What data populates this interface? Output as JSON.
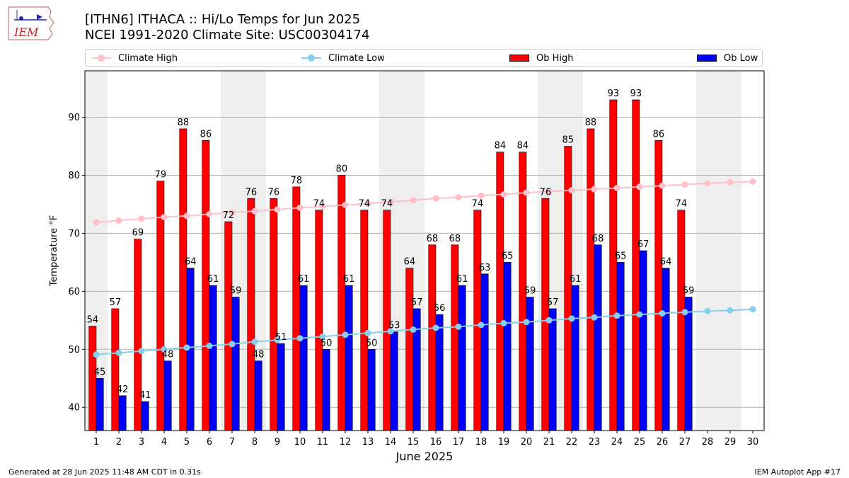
{
  "logo": {
    "text": "IEM"
  },
  "header": {
    "title_line1": "[ITHN6] ITHACA :: Hi/Lo Temps for Jun 2025",
    "title_line2": "NCEI 1991-2020 Climate Site: USC00304174"
  },
  "legend": {
    "climate_high": "Climate High",
    "climate_low": "Climate Low",
    "ob_high": "Ob High",
    "ob_low": "Ob Low"
  },
  "footer": {
    "left": "Generated at 28 Jun 2025 11:48 AM CDT in 0.31s",
    "right": "IEM Autoplot App #17"
  },
  "colors": {
    "ob_high": "#ff0000",
    "ob_low": "#0000ff",
    "climate_high": "#ffc0cb",
    "climate_low": "#87ceeb",
    "weekend_shade": "#eeeeee",
    "grid": "#b0b0b0"
  },
  "chart_data": {
    "type": "bar",
    "xlabel": "June 2025",
    "ylabel": "Temperature °F",
    "ylim": [
      36,
      98
    ],
    "yticks": [
      40,
      50,
      60,
      70,
      80,
      90
    ],
    "grid": "horizontal",
    "legend_position": "top",
    "categories": [
      1,
      2,
      3,
      4,
      5,
      6,
      7,
      8,
      9,
      10,
      11,
      12,
      13,
      14,
      15,
      16,
      17,
      18,
      19,
      20,
      21,
      22,
      23,
      24,
      25,
      26,
      27,
      28,
      29,
      30
    ],
    "shaded_days": [
      1,
      7,
      8,
      14,
      15,
      21,
      22,
      28,
      29
    ],
    "series": [
      {
        "name": "Ob High",
        "kind": "bar",
        "values": [
          54,
          57,
          69,
          79,
          88,
          86,
          72,
          76,
          76,
          78,
          74,
          80,
          74,
          74,
          64,
          68,
          68,
          74,
          84,
          84,
          76,
          85,
          88,
          93,
          93,
          86,
          74,
          null,
          null,
          null
        ]
      },
      {
        "name": "Ob Low",
        "kind": "bar",
        "values": [
          45,
          42,
          41,
          48,
          64,
          61,
          59,
          48,
          51,
          61,
          50,
          61,
          50,
          53,
          57,
          56,
          61,
          63,
          65,
          59,
          57,
          61,
          68,
          65,
          67,
          64,
          59,
          null,
          null,
          null
        ]
      },
      {
        "name": "Climate High",
        "kind": "line",
        "values": [
          71.9,
          72.2,
          72.5,
          72.8,
          73.0,
          73.3,
          73.6,
          73.8,
          74.1,
          74.4,
          74.6,
          74.9,
          75.1,
          75.4,
          75.7,
          76.0,
          76.2,
          76.5,
          76.7,
          77.0,
          77.2,
          77.4,
          77.6,
          77.8,
          78.0,
          78.2,
          78.4,
          78.6,
          78.8,
          78.9
        ]
      },
      {
        "name": "Climate Low",
        "kind": "line",
        "values": [
          49.1,
          49.4,
          49.7,
          50.0,
          50.3,
          50.6,
          50.9,
          51.3,
          51.6,
          51.9,
          52.2,
          52.5,
          52.8,
          53.1,
          53.4,
          53.7,
          53.9,
          54.2,
          54.5,
          54.7,
          55.0,
          55.3,
          55.5,
          55.8,
          56.0,
          56.2,
          56.4,
          56.6,
          56.7,
          56.9
        ]
      }
    ]
  }
}
